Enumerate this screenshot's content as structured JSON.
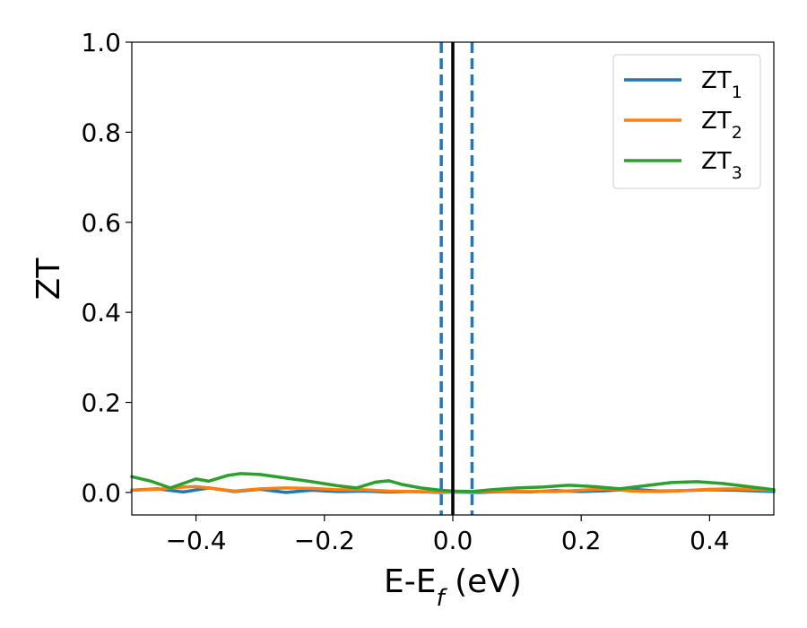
{
  "chart_data": {
    "type": "line",
    "title": "",
    "xlabel_main": "E-E",
    "xlabel_sub": "f",
    "xlabel_unit": " (eV)",
    "ylabel": "ZT",
    "xlim": [
      -0.5,
      0.5
    ],
    "ylim": [
      -0.05,
      1.0
    ],
    "x_ticks": [
      -0.4,
      -0.2,
      0.0,
      0.2,
      0.4
    ],
    "x_tick_labels": [
      "−0.4",
      "−0.2",
      "0.0",
      "0.2",
      "0.4"
    ],
    "y_ticks": [
      0.0,
      0.2,
      0.4,
      0.6,
      0.8,
      1.0
    ],
    "y_tick_labels": [
      "0.0",
      "0.2",
      "0.4",
      "0.6",
      "0.8",
      "1.0"
    ],
    "grid": false,
    "legend_position": "top-right",
    "vertical_lines": [
      {
        "x": 0.0,
        "style": "solid",
        "color": "#000000"
      },
      {
        "x": -0.018,
        "style": "dashed",
        "color": "#1f77b4"
      },
      {
        "x": 0.03,
        "style": "dashed",
        "color": "#1f77b4"
      }
    ],
    "series": [
      {
        "name_main": "ZT",
        "name_sub": "1",
        "color": "#1f77b4",
        "x": [
          -0.5,
          -0.46,
          -0.42,
          -0.38,
          -0.34,
          -0.3,
          -0.26,
          -0.22,
          -0.18,
          -0.14,
          -0.1,
          -0.06,
          -0.02,
          0.0,
          0.04,
          0.08,
          0.12,
          0.16,
          0.2,
          0.24,
          0.28,
          0.32,
          0.36,
          0.4,
          0.44,
          0.48,
          0.5
        ],
        "y": [
          0.005,
          0.008,
          0.001,
          0.01,
          0.002,
          0.007,
          0.0,
          0.005,
          0.002,
          0.003,
          0.001,
          0.002,
          0.0,
          0.001,
          0.0,
          0.002,
          0.001,
          0.004,
          0.002,
          0.004,
          0.007,
          0.003,
          0.004,
          0.006,
          0.005,
          0.003,
          0.002
        ]
      },
      {
        "name_main": "ZT",
        "name_sub": "2",
        "color": "#ff7f0e",
        "x": [
          -0.5,
          -0.46,
          -0.42,
          -0.4,
          -0.38,
          -0.34,
          -0.3,
          -0.26,
          -0.22,
          -0.18,
          -0.14,
          -0.1,
          -0.06,
          -0.02,
          0.0,
          0.04,
          0.08,
          0.12,
          0.16,
          0.2,
          0.24,
          0.28,
          0.32,
          0.36,
          0.4,
          0.44,
          0.48,
          0.5
        ],
        "y": [
          0.005,
          0.007,
          0.012,
          0.013,
          0.01,
          0.003,
          0.008,
          0.01,
          0.009,
          0.006,
          0.006,
          0.003,
          0.002,
          0.001,
          0.001,
          0.002,
          0.003,
          0.002,
          0.002,
          0.005,
          0.008,
          0.003,
          0.002,
          0.004,
          0.007,
          0.008,
          0.006,
          0.005
        ]
      },
      {
        "name_main": "ZT",
        "name_sub": "3",
        "color": "#2ca02c",
        "x": [
          -0.5,
          -0.47,
          -0.44,
          -0.42,
          -0.4,
          -0.38,
          -0.35,
          -0.33,
          -0.3,
          -0.26,
          -0.22,
          -0.18,
          -0.15,
          -0.12,
          -0.1,
          -0.08,
          -0.05,
          -0.02,
          0.0,
          0.03,
          0.06,
          0.1,
          0.14,
          0.18,
          0.22,
          0.26,
          0.3,
          0.34,
          0.38,
          0.42,
          0.46,
          0.5
        ],
        "y": [
          0.035,
          0.025,
          0.01,
          0.02,
          0.03,
          0.025,
          0.038,
          0.042,
          0.04,
          0.032,
          0.024,
          0.015,
          0.01,
          0.023,
          0.026,
          0.018,
          0.01,
          0.005,
          0.003,
          0.002,
          0.006,
          0.01,
          0.012,
          0.016,
          0.013,
          0.008,
          0.015,
          0.022,
          0.024,
          0.02,
          0.013,
          0.006
        ]
      }
    ]
  }
}
